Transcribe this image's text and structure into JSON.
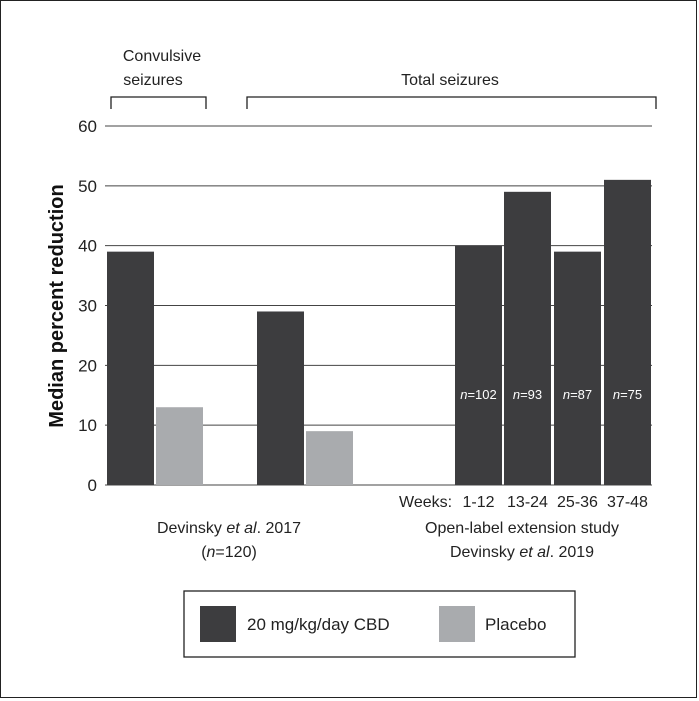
{
  "chart_data": {
    "type": "bar",
    "ylabel": "Median percent reduction",
    "ylim": [
      0,
      60
    ],
    "yticks": [
      0,
      10,
      20,
      30,
      40,
      50,
      60
    ],
    "grid": true,
    "brackets": [
      {
        "label_line1": "Convulsive",
        "label_line2": "seizures"
      },
      {
        "label_line1": "Total seizures",
        "label_line2": ""
      }
    ],
    "groups": [
      {
        "name": "convulsive-2017",
        "bars": [
          {
            "series": "20 mg/kg/day CBD",
            "value": 39
          },
          {
            "series": "Placebo",
            "value": 13
          }
        ]
      },
      {
        "name": "total-2017",
        "bars": [
          {
            "series": "20 mg/kg/day CBD",
            "value": 29
          },
          {
            "series": "Placebo",
            "value": 9
          }
        ]
      },
      {
        "name": "open-label-2019",
        "bars": [
          {
            "series": "20 mg/kg/day CBD",
            "value": 40,
            "n_prefix": "n",
            "n_value": "=102",
            "week": "1-12"
          },
          {
            "series": "20 mg/kg/day CBD",
            "value": 49,
            "n_prefix": "n",
            "n_value": "=93",
            "week": "13-24"
          },
          {
            "series": "20 mg/kg/day CBD",
            "value": 39,
            "n_prefix": "n",
            "n_value": "=87",
            "week": "25-36"
          },
          {
            "series": "20 mg/kg/day CBD",
            "value": 51,
            "n_prefix": "n",
            "n_value": "=75",
            "week": "37-48"
          }
        ]
      }
    ],
    "weeks_prefix": "Weeks:",
    "study_labels": {
      "left_line1_pre": "Devinsky ",
      "left_line1_ital": "et al",
      "left_line1_post": ". 2017",
      "left_line2_open": "(",
      "left_line2_ital": "n",
      "left_line2_rest": "=120)",
      "right_line1": "Open-label extension study",
      "right_line2_pre": "Devinsky ",
      "right_line2_ital": "et al",
      "right_line2_post": ". 2019"
    },
    "legend": [
      {
        "name": "20 mg/kg/day CBD",
        "color": "#3d3d3f"
      },
      {
        "name": "Placebo",
        "color": "#a9abae"
      }
    ],
    "colors": {
      "cbd": "#3d3d3f",
      "placebo": "#a9abae"
    }
  }
}
